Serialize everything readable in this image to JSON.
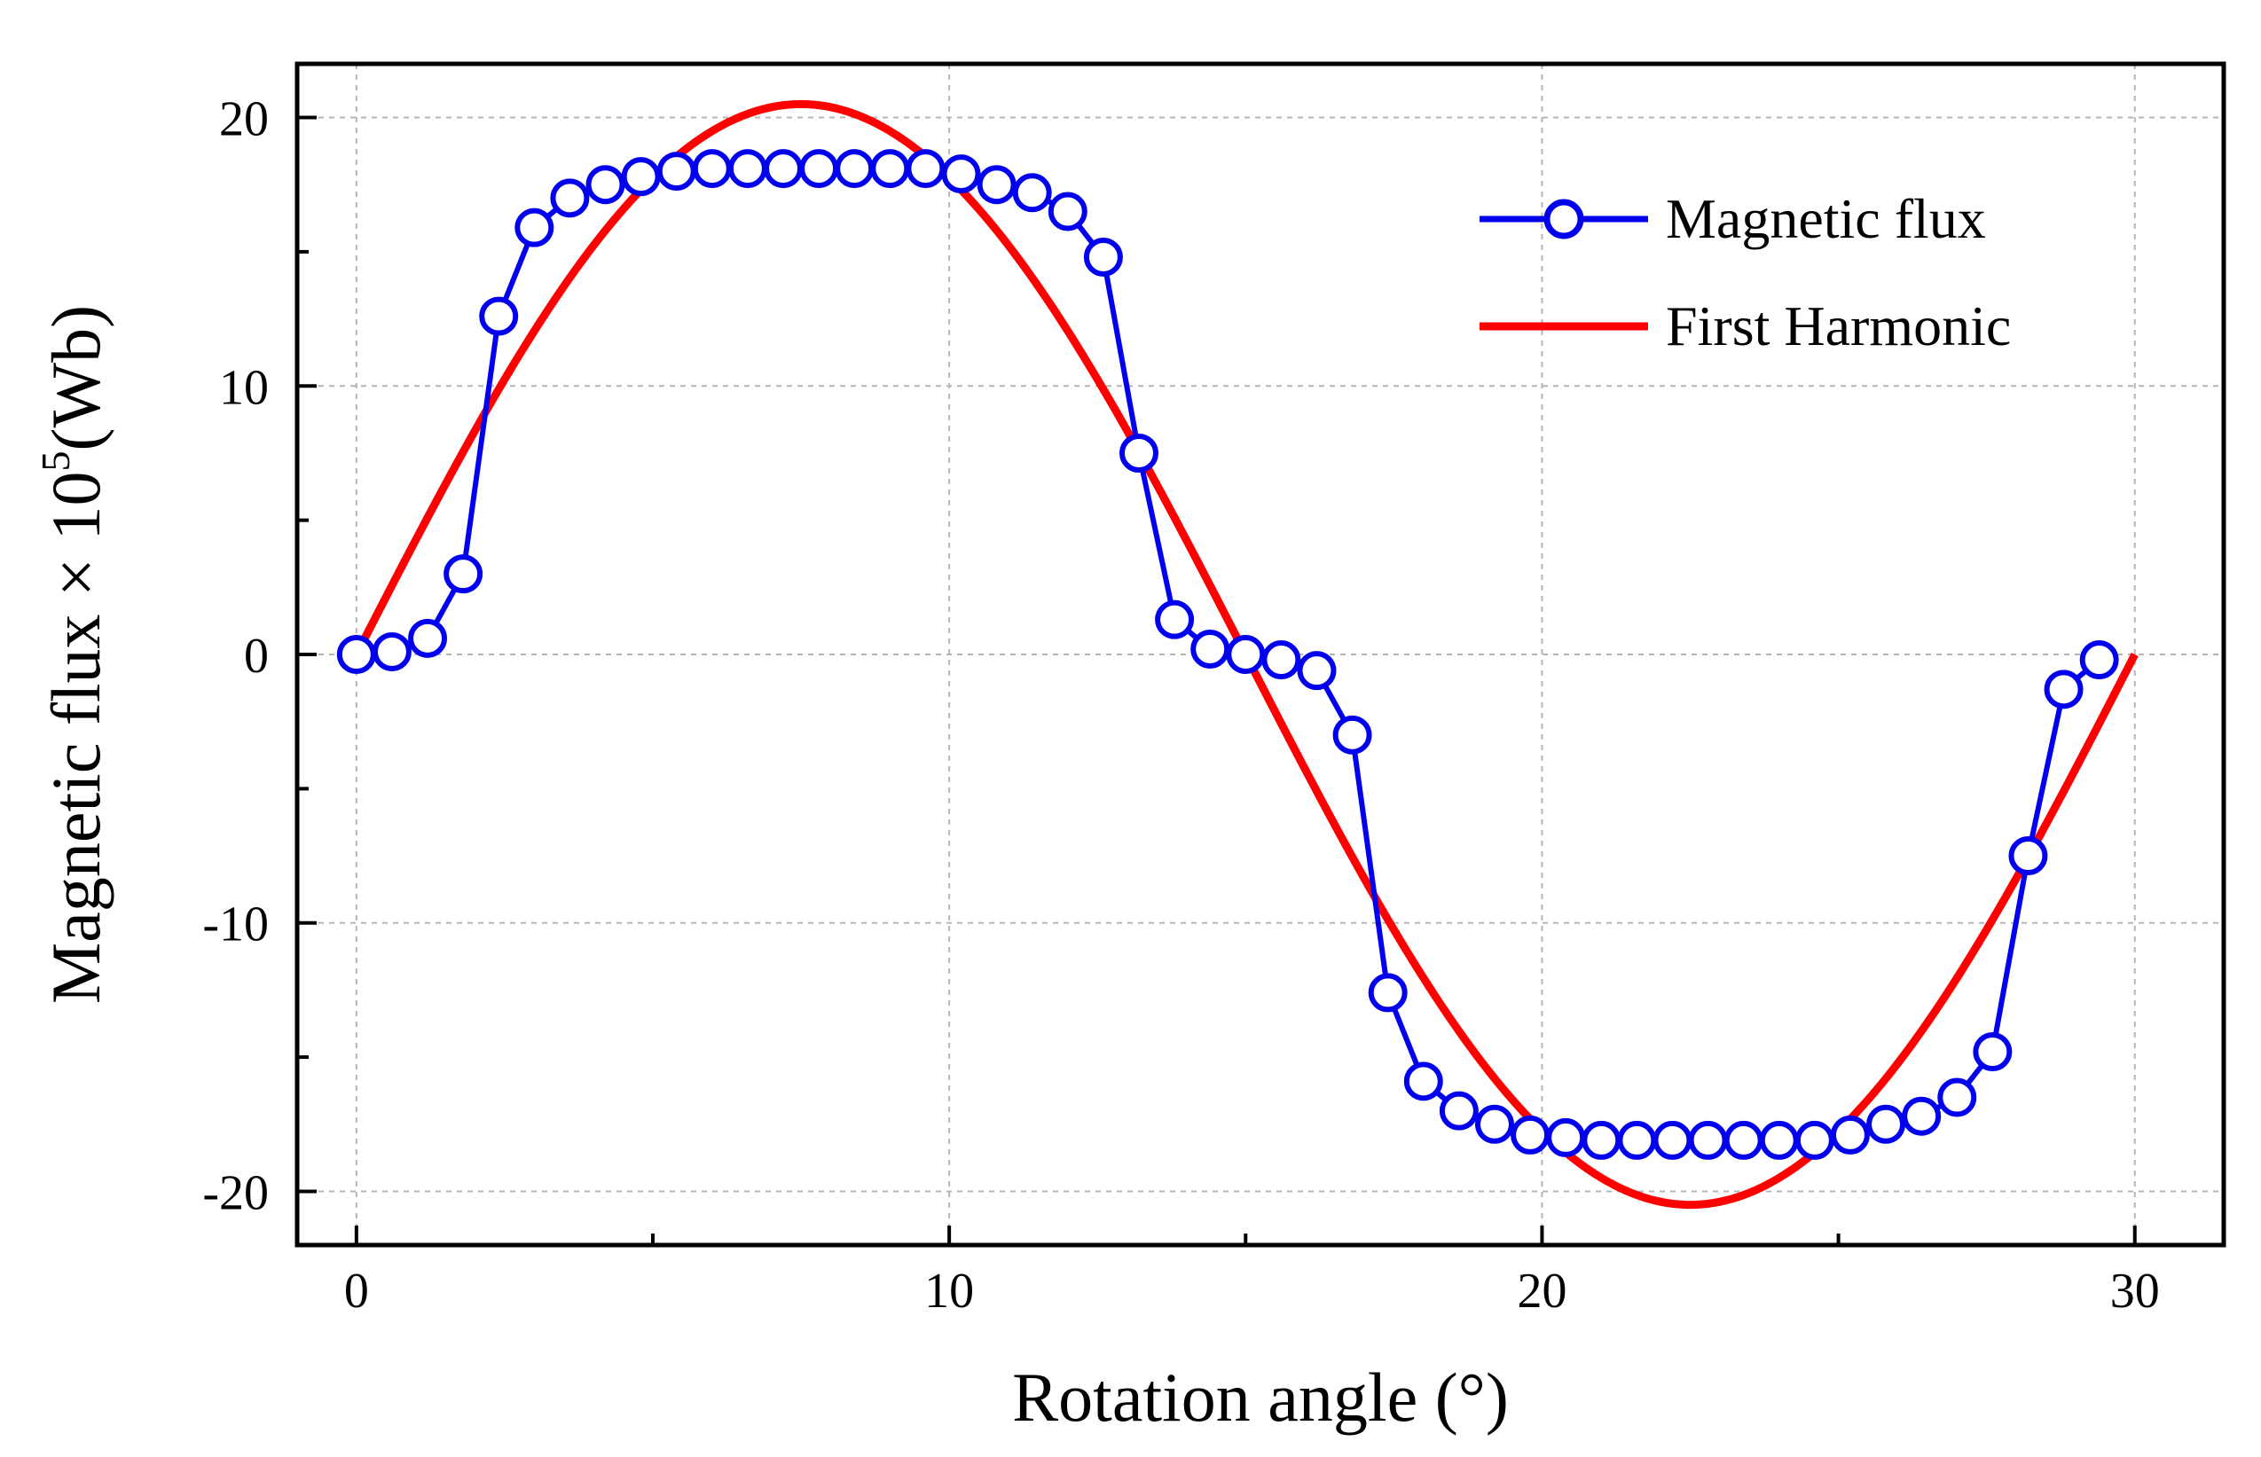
{
  "chart_data": {
    "type": "line",
    "title": "",
    "xlabel": "Rotation angle (°)",
    "ylabel_main": "Magnetic flux × 10",
    "ylabel_sup": "5",
    "ylabel_unit": "(Wb)",
    "xlim": [
      -1,
      31.5
    ],
    "ylim": [
      -22,
      22
    ],
    "x_ticks": [
      0,
      10,
      20,
      30
    ],
    "x_tick_labels": [
      "0",
      "10",
      "20",
      "30"
    ],
    "x_minor_ticks": [
      5,
      15,
      25
    ],
    "y_ticks": [
      -20,
      -10,
      0,
      10,
      20
    ],
    "y_tick_labels": [
      "-20",
      "-10",
      "0",
      "10",
      "20"
    ],
    "y_minor_ticks": [
      -15,
      -5,
      5,
      15
    ],
    "grid": true,
    "legend_position": "top-right",
    "series": [
      {
        "name": "Magnetic flux",
        "color": "#0000ee",
        "marker": "circle-open",
        "x": [
          0,
          0.6,
          1.2,
          1.8,
          2.4,
          3.0,
          3.6,
          4.2,
          4.8,
          5.4,
          6.0,
          6.6,
          7.2,
          7.8,
          8.4,
          9.0,
          9.6,
          10.2,
          10.8,
          11.4,
          12.0,
          12.6,
          13.2,
          13.8,
          14.4,
          15.0,
          15.6,
          16.2,
          16.8,
          17.4,
          18.0,
          18.6,
          19.2,
          19.8,
          20.4,
          21.0,
          21.6,
          22.2,
          22.8,
          23.4,
          24.0,
          24.6,
          25.2,
          25.8,
          26.4,
          27.0,
          27.6,
          28.2,
          28.8,
          29.4
        ],
        "y": [
          0,
          0.1,
          0.6,
          3.0,
          12.6,
          15.9,
          17.0,
          17.5,
          17.8,
          18.0,
          18.1,
          18.1,
          18.1,
          18.1,
          18.1,
          18.1,
          18.1,
          17.9,
          17.5,
          17.2,
          16.5,
          14.8,
          7.5,
          1.3,
          0.2,
          0.0,
          -0.2,
          -0.6,
          -3.0,
          -12.6,
          -15.9,
          -17.0,
          -17.5,
          -17.9,
          -18.0,
          -18.1,
          -18.1,
          -18.1,
          -18.1,
          -18.1,
          -18.1,
          -18.1,
          -17.9,
          -17.5,
          -17.2,
          -16.5,
          -14.8,
          -7.5,
          -1.3,
          -0.2
        ]
      },
      {
        "name": "First Harmonic",
        "color": "#ff0000",
        "marker": "none",
        "amplitude": 20.5,
        "period": 30,
        "function": "sine",
        "x_range": [
          0,
          30
        ]
      }
    ]
  }
}
